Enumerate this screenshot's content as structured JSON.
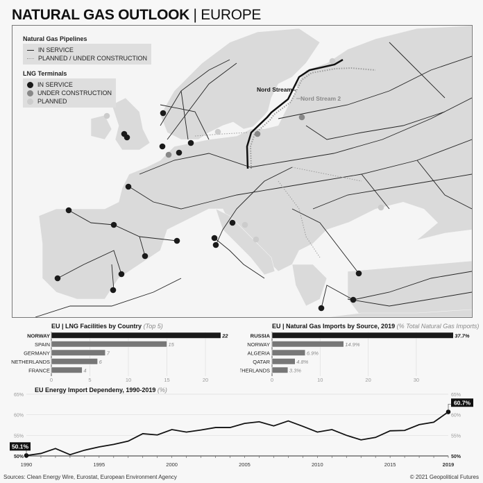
{
  "header": {
    "title_bold": "NATURAL GAS OUTLOOK",
    "title_sep": " | ",
    "title_rest": "EUROPE"
  },
  "legend": {
    "pipelines_title": "Natural Gas Pipelines",
    "pipelines": [
      {
        "label": "IN SERVICE",
        "style": "solid",
        "color": "#222222"
      },
      {
        "label": "PLANNED / UNDER CONSTRUCTION",
        "style": "dotted",
        "color": "#999999"
      }
    ],
    "lng_title": "LNG Terminals",
    "lng": [
      {
        "label": "IN SERVICE",
        "color": "#1a1a1a"
      },
      {
        "label": "UNDER CONSTRUCTION",
        "color": "#888888"
      },
      {
        "label": "PLANNED",
        "color": "#cccccc"
      }
    ]
  },
  "map": {
    "labels": {
      "nord_stream": "Nord Stream",
      "nord_stream_2": "Nord Stream 2"
    }
  },
  "chart_data": [
    {
      "type": "bar",
      "title": "EU | LNG Facilities by Country",
      "subtitle": "(Top 5)",
      "categories": [
        "NORWAY",
        "SPAIN",
        "GERMANY",
        "NETHERLANDS",
        "FRANCE"
      ],
      "values": [
        22,
        15,
        7,
        6,
        4
      ],
      "value_labels": [
        "22",
        "15",
        "7",
        "6",
        "4"
      ],
      "xlim": [
        0,
        22
      ],
      "ticks": [
        "0",
        "5",
        "10",
        "15",
        "20"
      ],
      "tick_values": [
        0,
        5,
        10,
        15,
        20
      ],
      "highlight_color": "#1a1a1a",
      "bar_color": "#777777",
      "grid": true
    },
    {
      "type": "bar",
      "title": "EU | Natural Gas Imports by Source, 2019",
      "subtitle": "(% Total Natural Gas Imports)",
      "categories": [
        "RUSSIA",
        "NORWAY",
        "ALGERIA",
        "QATAR",
        "NETHERLANDS"
      ],
      "values": [
        37.7,
        14.9,
        6.9,
        4.8,
        3.3
      ],
      "value_labels": [
        "37.7%",
        "14.9%",
        "6.9%",
        "4.8%",
        "3.3%"
      ],
      "xlim": [
        0,
        37.7
      ],
      "ticks": [
        "0",
        "10",
        "20",
        "30"
      ],
      "tick_values": [
        0,
        10,
        20,
        30
      ],
      "highlight_color": "#1a1a1a",
      "bar_color": "#777777",
      "grid": true
    },
    {
      "type": "line",
      "title": "EU Energy Import Dependeny, 1990-2019",
      "subtitle": "(%)",
      "x": [
        1990,
        1991,
        1992,
        1993,
        1994,
        1995,
        1996,
        1997,
        1998,
        1999,
        2000,
        2001,
        2002,
        2003,
        2004,
        2005,
        2006,
        2007,
        2008,
        2009,
        2010,
        2011,
        2012,
        2013,
        2014,
        2015,
        2016,
        2017,
        2018,
        2019
      ],
      "y": [
        50.1,
        50.6,
        51.8,
        50.3,
        51.4,
        52.2,
        52.8,
        53.6,
        55.4,
        55.1,
        56.4,
        55.8,
        56.3,
        56.9,
        56.9,
        57.9,
        58.3,
        57.3,
        58.5,
        57.2,
        55.8,
        56.4,
        55.0,
        53.9,
        54.5,
        56.1,
        56.2,
        57.6,
        58.2,
        60.7
      ],
      "ylim": [
        50,
        65
      ],
      "yticks": [
        "50%",
        "55%",
        "60%",
        "65%"
      ],
      "ytick_values": [
        50,
        55,
        60,
        65
      ],
      "xticks": [
        "1990",
        "1995",
        "2000",
        "2005",
        "2010",
        "2015",
        "2019"
      ],
      "xtick_values": [
        1990,
        1995,
        2000,
        2005,
        2010,
        2015,
        2019
      ],
      "start_label": "50.1%",
      "end_label": "60.7%",
      "grid": true
    }
  ],
  "footer": {
    "sources": "Sources: Clean Energy Wire, Eurostat, European Environment Agency",
    "copyright": "© 2021 Geopolitical Futures"
  }
}
